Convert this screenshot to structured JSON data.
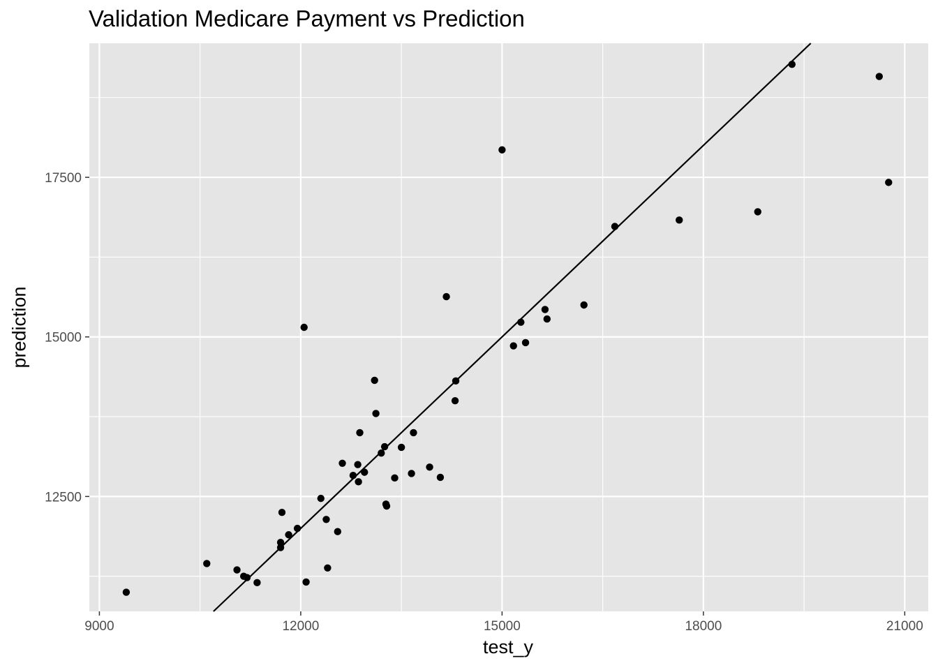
{
  "chart_data": {
    "type": "scatter",
    "title": "Validation Medicare Payment vs Prediction",
    "xlabel": "test_y",
    "ylabel": "prediction",
    "xlim": [
      8850,
      21350
    ],
    "ylim": [
      10700,
      19600
    ],
    "x_ticks": [
      9000,
      12000,
      15000,
      18000,
      21000
    ],
    "x_tick_labels": [
      "9000",
      "12000",
      "15000",
      "18000",
      "21000"
    ],
    "y_ticks": [
      12500,
      15000,
      17500
    ],
    "y_tick_labels": [
      "12500",
      "15000",
      "17500"
    ],
    "grid": true,
    "reference_line": {
      "slope": 1,
      "intercept": 0
    },
    "series": [
      {
        "points": [
          [
            9400,
            11000
          ],
          [
            10600,
            11450
          ],
          [
            11050,
            11350
          ],
          [
            11150,
            11250
          ],
          [
            11200,
            11230
          ],
          [
            11350,
            11150
          ],
          [
            11700,
            11700
          ],
          [
            11700,
            11780
          ],
          [
            11720,
            12250
          ],
          [
            11820,
            11900
          ],
          [
            11950,
            12000
          ],
          [
            12050,
            15150
          ],
          [
            12080,
            11160
          ],
          [
            12300,
            12470
          ],
          [
            12380,
            12140
          ],
          [
            12400,
            11380
          ],
          [
            12550,
            11950
          ],
          [
            12620,
            13020
          ],
          [
            12780,
            12830
          ],
          [
            12850,
            13000
          ],
          [
            12860,
            12730
          ],
          [
            12880,
            13500
          ],
          [
            12950,
            12880
          ],
          [
            13100,
            14320
          ],
          [
            13120,
            13800
          ],
          [
            13200,
            13180
          ],
          [
            13250,
            13280
          ],
          [
            13270,
            12380
          ],
          [
            13280,
            12350
          ],
          [
            13400,
            12790
          ],
          [
            13500,
            13270
          ],
          [
            13650,
            12860
          ],
          [
            13680,
            13500
          ],
          [
            13920,
            12960
          ],
          [
            14080,
            12800
          ],
          [
            14170,
            15630
          ],
          [
            14300,
            14000
          ],
          [
            14310,
            14310
          ],
          [
            15000,
            17930
          ],
          [
            15170,
            14860
          ],
          [
            15280,
            15230
          ],
          [
            15350,
            14910
          ],
          [
            15640,
            15430
          ],
          [
            15670,
            15280
          ],
          [
            16220,
            15500
          ],
          [
            16680,
            16730
          ],
          [
            17640,
            16830
          ],
          [
            18810,
            16960
          ],
          [
            19320,
            19270
          ],
          [
            20620,
            19080
          ],
          [
            20760,
            17420
          ]
        ]
      }
    ],
    "point_color": "#000000",
    "panel_background": "#e5e5e5",
    "grid_color": "#ffffff"
  }
}
